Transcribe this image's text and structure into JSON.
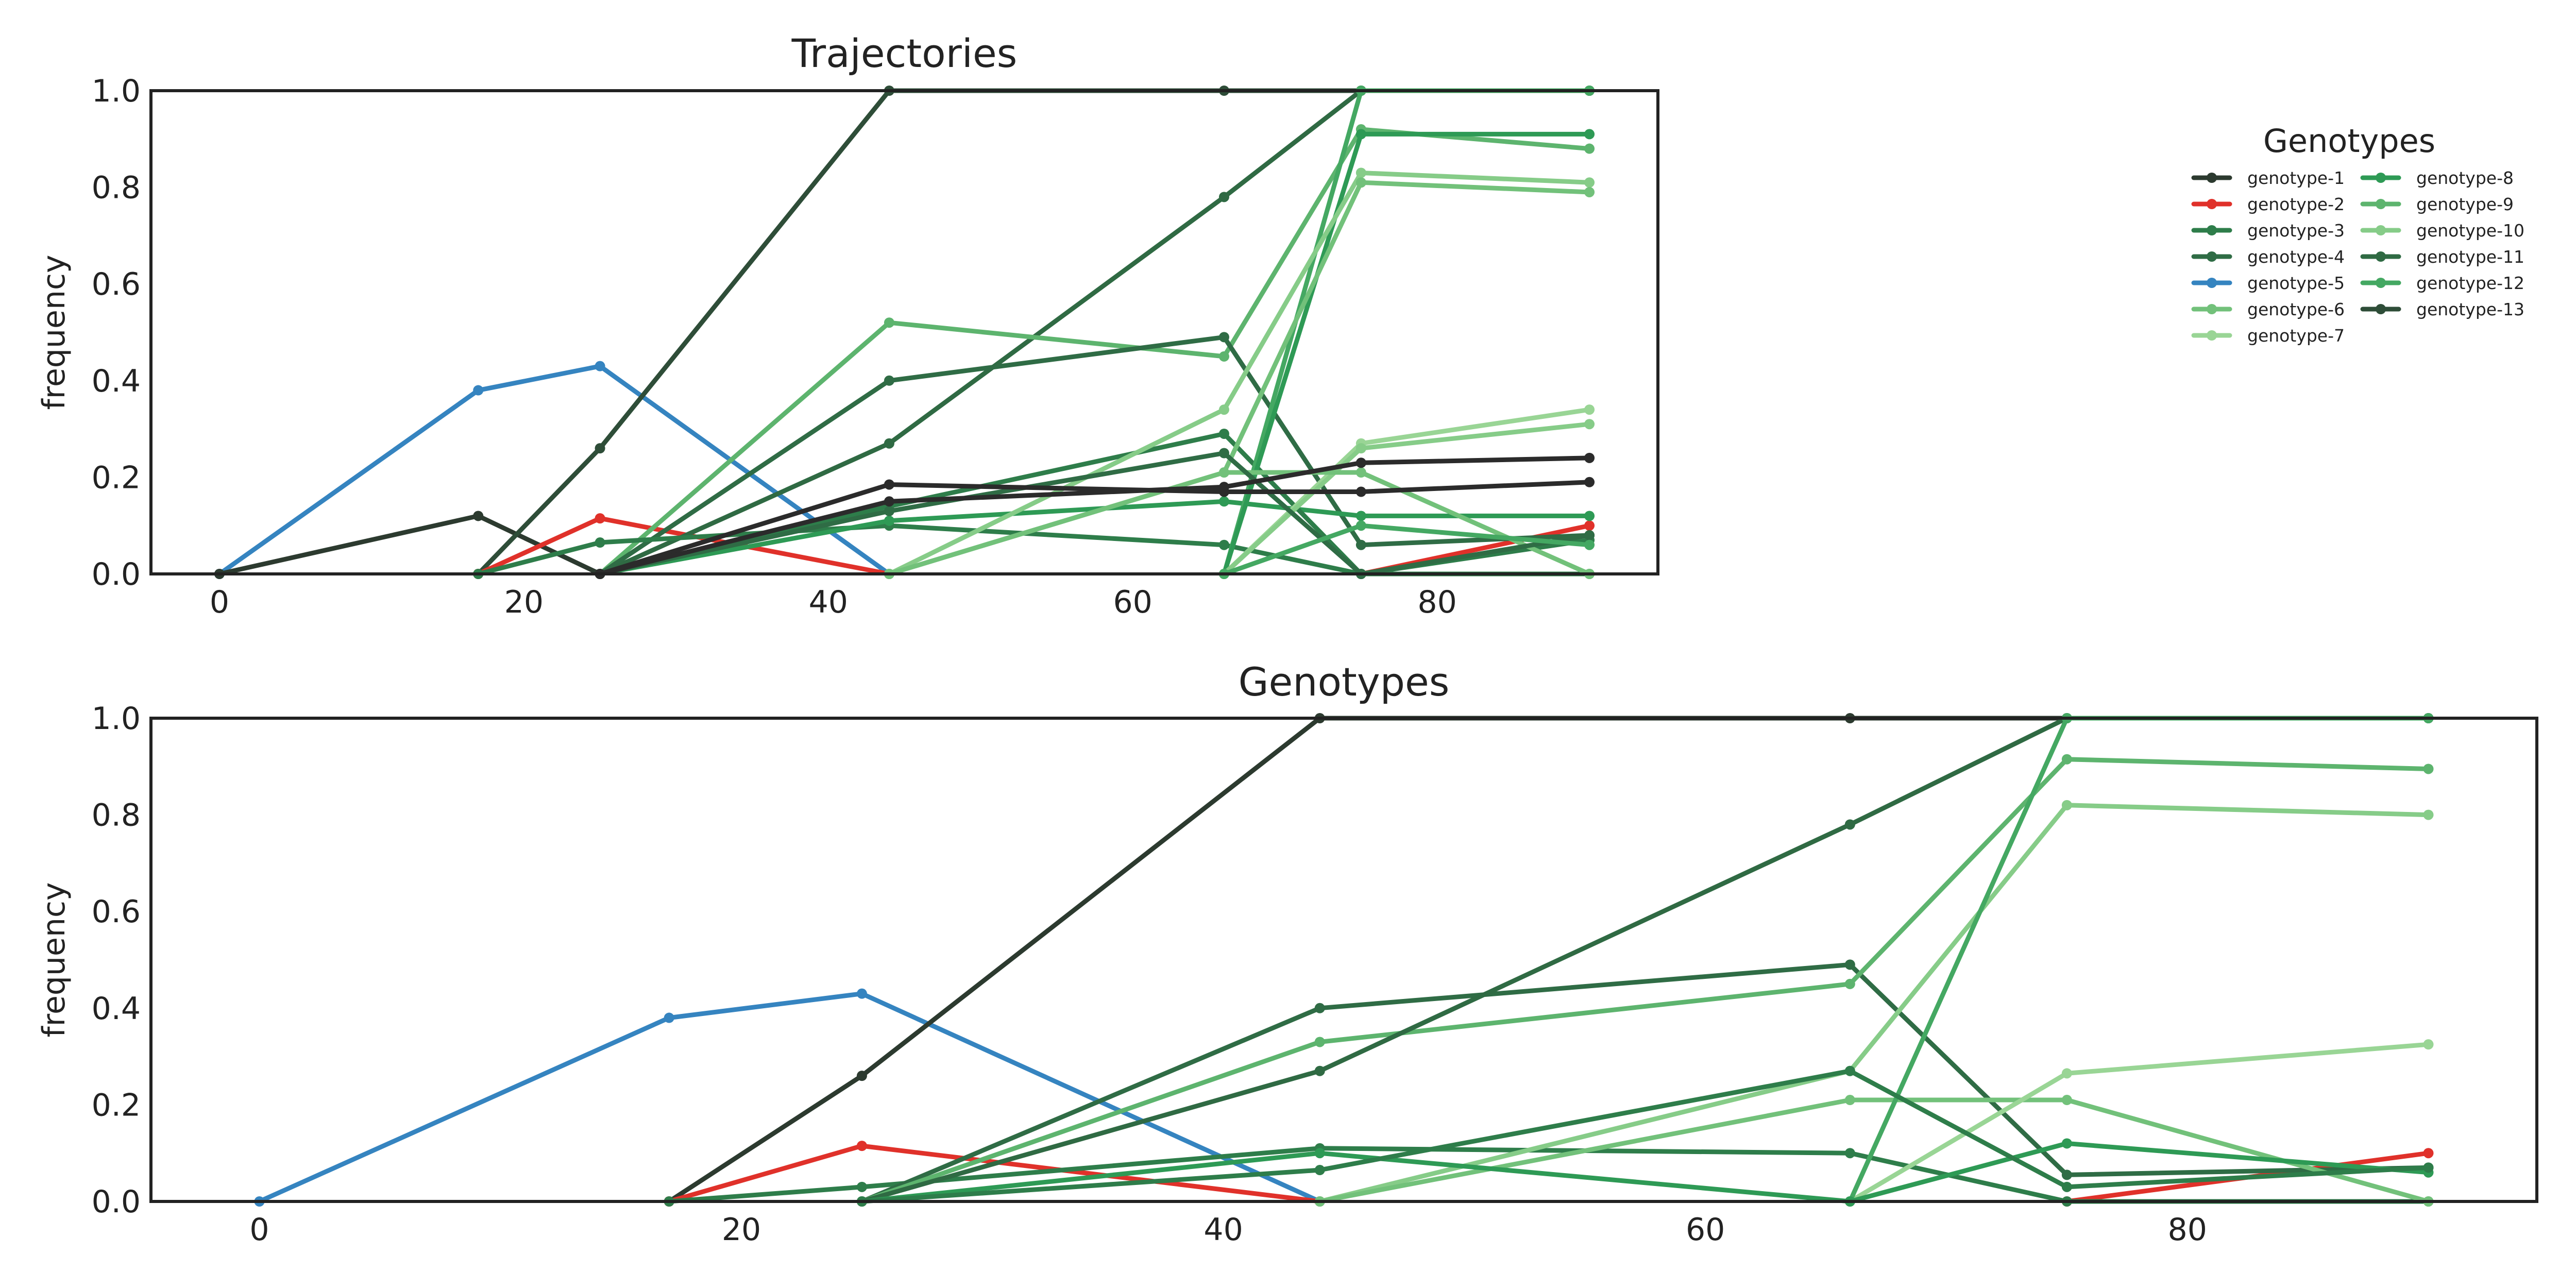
{
  "colors": {
    "genotype-1": "#2c3a2f",
    "genotype-2": "#e0312a",
    "genotype-3": "#2e7d4a",
    "genotype-4": "#2f6c45",
    "genotype-5": "#3584c0",
    "genotype-6": "#72c17a",
    "genotype-7": "#99d595",
    "genotype-8": "#2e9a55",
    "genotype-9": "#5db46e",
    "genotype-10": "#86cc88",
    "genotype-11": "#2f6a43",
    "genotype-12": "#44a862",
    "genotype-13": "#2e4d38",
    "extra-black": "#2b2b2b"
  },
  "legend": {
    "title": "Genotypes",
    "entries": [
      "genotype-1",
      "genotype-2",
      "genotype-3",
      "genotype-4",
      "genotype-5",
      "genotype-6",
      "genotype-7",
      "genotype-8",
      "genotype-9",
      "genotype-10",
      "genotype-11",
      "genotype-12",
      "genotype-13"
    ]
  },
  "chart_data": [
    {
      "type": "line",
      "title": "Trajectories",
      "xlabel": "",
      "ylabel": "frequency",
      "xlim": [
        -4.5,
        94.5
      ],
      "ylim": [
        0,
        1.0
      ],
      "xticks": [
        0,
        20,
        40,
        60,
        80
      ],
      "yticks": [
        0.0,
        0.2,
        0.4,
        0.6,
        0.8,
        1.0
      ],
      "yticklabels": [
        "0.0",
        "0.2",
        "0.4",
        "0.6",
        "0.8",
        "1.0"
      ],
      "grid": false,
      "series": [
        {
          "key": "genotype-5",
          "color": "#3584c0",
          "x": [
            0,
            17,
            25,
            44
          ],
          "y": [
            0,
            0.38,
            0.43,
            0
          ]
        },
        {
          "key": "genotype-1",
          "color": "#2c3a2f",
          "x": [
            0,
            17,
            25
          ],
          "y": [
            0,
            0.12,
            0
          ]
        },
        {
          "key": "genotype-13",
          "color": "#2e4d38",
          "x": [
            17,
            25,
            44,
            66,
            75,
            90
          ],
          "y": [
            0,
            0.26,
            1.0,
            1.0,
            1.0,
            1.0
          ]
        },
        {
          "key": "genotype-2",
          "color": "#e0312a",
          "x": [
            17,
            25,
            44
          ],
          "y": [
            0,
            0.115,
            0
          ]
        },
        {
          "key": "genotype-2",
          "color": "#e0312a",
          "x": [
            75,
            90
          ],
          "y": [
            0,
            0.1
          ]
        },
        {
          "key": "genotype-11",
          "color": "#2f6a43",
          "x": [
            25,
            44,
            66,
            75,
            90
          ],
          "y": [
            0,
            0.27,
            0.78,
            1.0,
            1.0
          ]
        },
        {
          "key": "genotype-9",
          "color": "#5db46e",
          "x": [
            25,
            44,
            66,
            75,
            90
          ],
          "y": [
            0,
            0.52,
            0.45,
            0.92,
            0.88
          ]
        },
        {
          "key": "genotype-4",
          "color": "#2f6c45",
          "x": [
            25,
            44,
            66,
            75,
            90
          ],
          "y": [
            0,
            0.4,
            0.49,
            0.06,
            0.08
          ]
        },
        {
          "key": "genotype-3",
          "color": "#2e7d4a",
          "x": [
            17,
            25,
            44,
            66,
            75,
            90
          ],
          "y": [
            0,
            0.065,
            0.1,
            0.06,
            0,
            0
          ]
        },
        {
          "key": "genotype-8",
          "color": "#2e9a55",
          "x": [
            25,
            44,
            66,
            75,
            90
          ],
          "y": [
            0,
            0.11,
            0.15,
            0.12,
            0.12
          ]
        },
        {
          "key": "genotype-3",
          "color": "#2e7d4a",
          "x": [
            25,
            44,
            66,
            75,
            90
          ],
          "y": [
            0,
            0.14,
            0.29,
            0,
            0.07
          ]
        },
        {
          "key": "genotype-12",
          "color": "#44a862",
          "x": [
            66,
            75,
            90
          ],
          "y": [
            0,
            1.0,
            1.0
          ]
        },
        {
          "key": "genotype-8",
          "color": "#2e9a55",
          "x": [
            66,
            75,
            90
          ],
          "y": [
            0,
            0.91,
            0.91
          ]
        },
        {
          "key": "genotype-10",
          "color": "#86cc88",
          "x": [
            44,
            66,
            75,
            90
          ],
          "y": [
            0,
            0.34,
            0.83,
            0.81
          ]
        },
        {
          "key": "genotype-6",
          "color": "#72c17a",
          "x": [
            44,
            66,
            75,
            90
          ],
          "y": [
            0,
            0.21,
            0.81,
            0.79
          ]
        },
        {
          "key": "genotype-7",
          "color": "#99d595",
          "x": [
            66,
            75,
            90
          ],
          "y": [
            0,
            0.27,
            0.34
          ]
        },
        {
          "key": "genotype-10",
          "color": "#86cc88",
          "x": [
            66,
            75,
            90
          ],
          "y": [
            0,
            0.26,
            0.31
          ]
        },
        {
          "key": "genotype-6",
          "color": "#72c17a",
          "x": [
            44,
            66,
            75,
            90
          ],
          "y": [
            0,
            0.21,
            0.21,
            0
          ]
        },
        {
          "key": "genotype-4",
          "color": "#2f6c45",
          "x": [
            25,
            44,
            66,
            75,
            90
          ],
          "y": [
            0,
            0.13,
            0.25,
            0,
            0.08
          ]
        },
        {
          "key": "genotype-12",
          "color": "#44a862",
          "x": [
            66,
            75,
            90
          ],
          "y": [
            0,
            0.1,
            0.06
          ]
        },
        {
          "key": "extra-black",
          "color": "#2b2b2b",
          "x": [
            25,
            44,
            66,
            75,
            90
          ],
          "y": [
            0,
            0.185,
            0.17,
            0.17,
            0.19
          ]
        },
        {
          "key": "extra-black",
          "color": "#2b2b2b",
          "x": [
            25,
            44,
            66,
            75,
            90
          ],
          "y": [
            0,
            0.15,
            0.18,
            0.23,
            0.24
          ]
        }
      ]
    },
    {
      "type": "line",
      "title": "Genotypes",
      "xlabel": "",
      "ylabel": "frequency",
      "xlim": [
        -4.5,
        94.5
      ],
      "ylim": [
        0,
        1.0
      ],
      "xticks": [
        0,
        20,
        40,
        60,
        80
      ],
      "yticks": [
        0.0,
        0.2,
        0.4,
        0.6,
        0.8,
        1.0
      ],
      "yticklabels": [
        "0.0",
        "0.2",
        "0.4",
        "0.6",
        "0.8",
        "1.0"
      ],
      "grid": false,
      "series": [
        {
          "key": "genotype-5",
          "color": "#3584c0",
          "x": [
            0,
            17,
            25,
            44
          ],
          "y": [
            0,
            0.38,
            0.43,
            0
          ]
        },
        {
          "key": "genotype-1",
          "color": "#2c3a2f",
          "x": [
            17,
            25,
            44,
            66,
            75,
            90
          ],
          "y": [
            0,
            0.26,
            1.0,
            1.0,
            1.0,
            1.0
          ]
        },
        {
          "key": "genotype-2",
          "color": "#e0312a",
          "x": [
            17,
            25,
            44
          ],
          "y": [
            0,
            0.115,
            0
          ]
        },
        {
          "key": "genotype-2",
          "color": "#e0312a",
          "x": [
            75,
            90
          ],
          "y": [
            0,
            0.1
          ]
        },
        {
          "key": "genotype-3",
          "color": "#2e7d4a",
          "x": [
            17,
            25,
            44,
            66,
            75,
            90
          ],
          "y": [
            0,
            0.03,
            0.11,
            0.1,
            0,
            0
          ]
        },
        {
          "key": "genotype-4",
          "color": "#2f6c45",
          "x": [
            25,
            44,
            66,
            75,
            90
          ],
          "y": [
            0,
            0.4,
            0.49,
            0.055,
            0.07
          ]
        },
        {
          "key": "genotype-9",
          "color": "#5db46e",
          "x": [
            25,
            44,
            66,
            75,
            90
          ],
          "y": [
            0,
            0.33,
            0.45,
            0.915,
            0.895
          ]
        },
        {
          "key": "genotype-11",
          "color": "#2f6a43",
          "x": [
            25,
            44,
            66,
            75,
            90
          ],
          "y": [
            0,
            0.27,
            0.78,
            1.0,
            1.0
          ]
        },
        {
          "key": "genotype-10",
          "color": "#86cc88",
          "x": [
            44,
            66,
            75,
            90
          ],
          "y": [
            0,
            0.27,
            0.82,
            0.8
          ]
        },
        {
          "key": "genotype-6",
          "color": "#72c17a",
          "x": [
            44,
            66,
            75,
            90
          ],
          "y": [
            0,
            0.21,
            0.21,
            0
          ]
        },
        {
          "key": "genotype-7",
          "color": "#99d595",
          "x": [
            66,
            75,
            90
          ],
          "y": [
            0,
            0.265,
            0.325
          ]
        },
        {
          "key": "genotype-12",
          "color": "#44a862",
          "x": [
            66,
            75,
            90
          ],
          "y": [
            0,
            1.0,
            1.0
          ]
        },
        {
          "key": "genotype-8",
          "color": "#2e9a55",
          "x": [
            25,
            44,
            66,
            75,
            90
          ],
          "y": [
            0,
            0.1,
            0,
            0.12,
            0.06
          ]
        },
        {
          "key": "genotype-3",
          "color": "#2e7d4a",
          "x": [
            25,
            44,
            66,
            75,
            90
          ],
          "y": [
            0,
            0.065,
            0.27,
            0.03,
            0.07
          ]
        }
      ]
    }
  ]
}
